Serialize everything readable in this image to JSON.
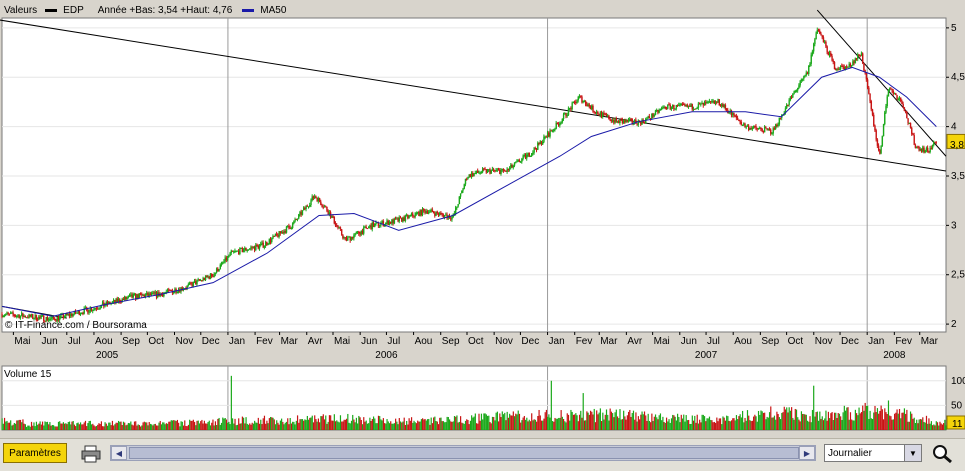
{
  "legend": {
    "label": "Valeurs",
    "symbol": "EDP",
    "range_text": "Année +Bas: 3,54 +Haut: 4,76",
    "ma_label": "MA50",
    "symbol_color": "#000000",
    "ma_color": "#1a1aa8"
  },
  "copyright": "© IT-Finance.com / Boursorama",
  "volume_label": "Volume 15",
  "current_price_label": "3,8",
  "current_volume_label": "11",
  "colors": {
    "plot_bg": "#ffffff",
    "frame_bg": "#d8d4cc",
    "up": "#1aa81a",
    "down": "#c81414",
    "ma": "#1a1aa8",
    "trendline": "#000000",
    "price_marker": "#f4d40a"
  },
  "chart_data": [
    {
      "type": "line",
      "title": "",
      "series": [
        {
          "name": "EDP",
          "x": [
            "2005-04-18",
            "2005-05-15",
            "2005-06-15",
            "2005-07-15",
            "2005-08-15",
            "2005-09-15",
            "2005-10-15",
            "2005-11-15",
            "2005-12-15",
            "2006-01-05",
            "2006-02-10",
            "2006-03-15",
            "2006-04-10",
            "2006-04-25",
            "2006-05-15",
            "2006-06-15",
            "2006-07-15",
            "2006-08-15",
            "2006-09-15",
            "2006-10-01",
            "2006-10-20",
            "2006-11-15",
            "2006-12-15",
            "2007-01-15",
            "2007-02-06",
            "2007-02-25",
            "2007-03-20",
            "2007-04-20",
            "2007-05-15",
            "2007-06-15",
            "2007-07-15",
            "2007-08-15",
            "2007-09-15",
            "2007-10-10",
            "2007-10-25",
            "2007-11-05",
            "2007-11-25",
            "2007-12-10",
            "2007-12-25",
            "2008-01-15",
            "2008-01-25",
            "2008-02-10",
            "2008-02-25",
            "2008-03-10",
            "2008-03-20"
          ],
          "close": [
            2.1,
            2.08,
            2.05,
            2.12,
            2.2,
            2.28,
            2.3,
            2.38,
            2.5,
            2.72,
            2.8,
            3.0,
            3.3,
            3.15,
            2.85,
            3.0,
            3.05,
            3.15,
            3.08,
            3.5,
            3.55,
            3.55,
            3.75,
            4.05,
            4.3,
            4.15,
            4.05,
            4.05,
            4.2,
            4.2,
            4.25,
            4.0,
            3.95,
            4.35,
            4.55,
            5.0,
            4.6,
            4.6,
            4.75,
            3.7,
            4.4,
            4.25,
            3.8,
            3.75,
            3.85
          ]
        },
        {
          "name": "MA50",
          "x": [
            "2005-04-18",
            "2005-06-15",
            "2005-08-15",
            "2005-10-15",
            "2005-12-15",
            "2006-02-15",
            "2006-04-15",
            "2006-05-25",
            "2006-07-15",
            "2006-09-15",
            "2006-11-15",
            "2007-01-15",
            "2007-02-20",
            "2007-04-15",
            "2007-06-15",
            "2007-08-15",
            "2007-09-25",
            "2007-11-10",
            "2007-12-15",
            "2008-01-15",
            "2008-02-15",
            "2008-03-20"
          ],
          "values": [
            2.18,
            2.08,
            2.2,
            2.3,
            2.42,
            2.72,
            3.1,
            3.12,
            2.95,
            3.1,
            3.4,
            3.7,
            3.9,
            4.05,
            4.15,
            4.15,
            4.1,
            4.5,
            4.6,
            4.5,
            4.3,
            4.0
          ]
        }
      ],
      "trendlines": [
        {
          "x": [
            "2005-04-01",
            "2008-03-31"
          ],
          "values": [
            5.1,
            3.55
          ]
        },
        {
          "x": [
            "2005-04-18",
            "2005-07-01"
          ],
          "values": [
            2.18,
            2.06
          ]
        },
        {
          "x": [
            "2007-11-05",
            "2008-03-31"
          ],
          "values": [
            5.18,
            3.7
          ]
        }
      ],
      "yaxis": {
        "ticks": [
          2,
          2.5,
          3,
          3.5,
          4,
          4.5,
          5
        ],
        "tick_labels": [
          "2",
          "2,5",
          "3",
          "3,5",
          "4",
          "4,5",
          "5"
        ],
        "ylim": [
          1.92,
          5.1
        ],
        "position": "right"
      },
      "xaxis": {
        "xlim": [
          "2005-04-18",
          "2008-03-31"
        ],
        "months": [
          "Mai",
          "Jun",
          "Jul",
          "Aou",
          "Sep",
          "Oct",
          "Nov",
          "Dec",
          "Jan",
          "Fev",
          "Mar",
          "Avr",
          "Mai",
          "Jun",
          "Jul",
          "Aou",
          "Sep",
          "Oct",
          "Nov",
          "Dec",
          "Jan",
          "Fev",
          "Mar",
          "Avr",
          "Mai",
          "Jun",
          "Jul",
          "Aou",
          "Sep",
          "Oct",
          "Nov",
          "Dec",
          "Jan",
          "Fev",
          "Mar"
        ],
        "month_dates": [
          "2005-05-01",
          "2005-06-01",
          "2005-07-01",
          "2005-08-01",
          "2005-09-01",
          "2005-10-01",
          "2005-11-01",
          "2005-12-01",
          "2006-01-01",
          "2006-02-01",
          "2006-03-01",
          "2006-04-01",
          "2006-05-01",
          "2006-06-01",
          "2006-07-01",
          "2006-08-01",
          "2006-09-01",
          "2006-10-01",
          "2006-11-01",
          "2006-12-01",
          "2007-01-01",
          "2007-02-01",
          "2007-03-01",
          "2007-04-01",
          "2007-05-01",
          "2007-06-01",
          "2007-07-01",
          "2007-08-01",
          "2007-09-01",
          "2007-10-01",
          "2007-11-01",
          "2007-12-01",
          "2008-01-01",
          "2008-02-01",
          "2008-03-01"
        ],
        "years": [
          "2005",
          "2006",
          "2007",
          "2008"
        ],
        "year_dates": [
          "2005-08-16",
          "2006-07-01",
          "2007-07-01",
          "2008-02-01"
        ],
        "year_separators": [
          "2006-01-01",
          "2007-01-01",
          "2008-01-01"
        ]
      },
      "grid": true,
      "legend_position": "top-left"
    },
    {
      "type": "bar",
      "title": "Volume 15",
      "x": [
        "2005-05",
        "2005-07",
        "2005-09",
        "2005-11",
        "2006-01",
        "2006-03",
        "2006-05",
        "2006-07",
        "2006-09",
        "2006-11",
        "2007-01",
        "2007-03",
        "2007-05",
        "2007-07",
        "2007-09",
        "2007-11",
        "2008-01",
        "2008-03"
      ],
      "values": [
        12,
        14,
        13,
        15,
        20,
        22,
        25,
        18,
        22,
        28,
        30,
        32,
        25,
        22,
        35,
        30,
        45,
        18
      ],
      "peaks": [
        {
          "x": "2006-01-05",
          "value": 110
        },
        {
          "x": "2007-01-05",
          "value": 100
        },
        {
          "x": "2007-02-10",
          "value": 75
        },
        {
          "x": "2007-11-01",
          "value": 90
        },
        {
          "x": "2008-01-25",
          "value": 60
        }
      ],
      "yaxis": {
        "ticks": [
          50,
          100
        ],
        "tick_labels": [
          "50",
          "100"
        ],
        "ylim": [
          0,
          130
        ],
        "position": "right"
      },
      "grid": true
    }
  ],
  "toolbar": {
    "params_label": "Paramètres",
    "print_icon": "printer-icon",
    "zoom_icon": "magnifier-icon",
    "period_select_value": "Journalier"
  }
}
